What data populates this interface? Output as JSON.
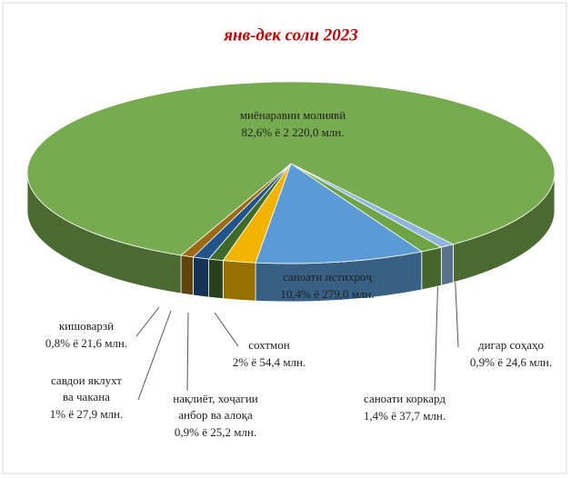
{
  "chart_data": {
    "type": "pie3d",
    "title": "янв-дек соли 2023",
    "categories": [
      [
        "дигар соҳаҳо"
      ],
      [
        "саноати коркард"
      ],
      [
        "саноати истихроҷ"
      ],
      [
        "сохтмон"
      ],
      [
        "нақлиёт, хоҷагии",
        "анбор ва алоқа"
      ],
      [
        "савдои яклухт",
        "ва чакана"
      ],
      [
        "кишоварзӣ"
      ],
      [
        "миёнаравии молиявӣ"
      ]
    ],
    "values": [
      0.9,
      1.4,
      10.4,
      2,
      0.9,
      1,
      0.8,
      82.6
    ],
    "value_labels": [
      "0,9% ё 24,6 млн.",
      "1,4% ё 37,7 млн.",
      "10,4% ё 279,0 млн.",
      "2% ё 54,4 млн.",
      "0,9% ё 25,2 млн.",
      "1% ё 27,9 млн.",
      "0,8% ё 21,6 млн.",
      "82,6% ё 2 220,0 млн."
    ],
    "colors": [
      "#8fb4de",
      "#6fa446",
      "#5b9bd5",
      "#f2b400",
      "#3f6a2a",
      "#22538a",
      "#9c6a12",
      "#77ab4f"
    ]
  }
}
